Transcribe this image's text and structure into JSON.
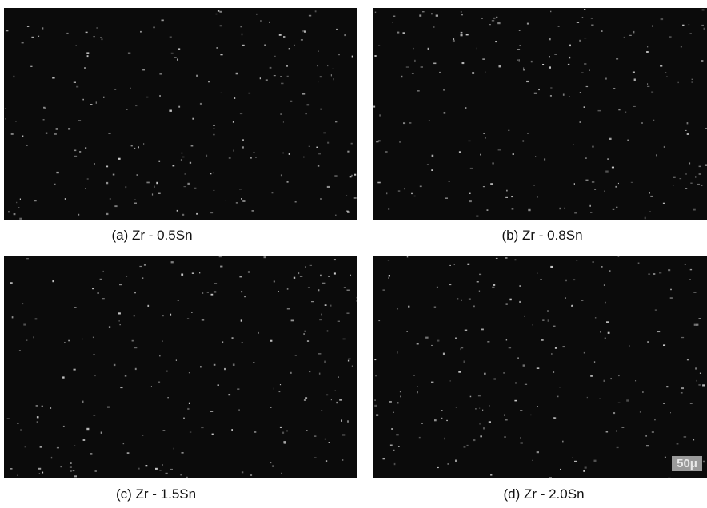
{
  "panels": [
    {
      "caption": "(a) Zr - 0.5Sn"
    },
    {
      "caption": "(b) Zr - 0.8Sn"
    },
    {
      "caption": "(c) Zr - 1.5Sn"
    },
    {
      "caption": "(d) Zr - 2.0Sn"
    }
  ],
  "scale_bar": "50μ"
}
